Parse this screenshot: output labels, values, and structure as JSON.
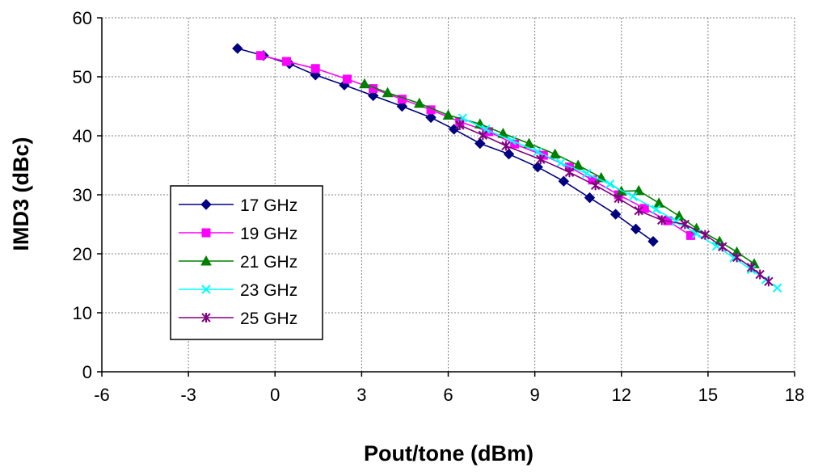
{
  "chart_data": {
    "type": "line",
    "xlabel": "Pout/tone (dBm)",
    "ylabel": "IMD3 (dBc)",
    "xlim": [
      -6,
      18
    ],
    "ylim": [
      0,
      60
    ],
    "xticks": [
      -6,
      -3,
      0,
      3,
      6,
      9,
      12,
      15,
      18
    ],
    "yticks": [
      0,
      10,
      20,
      30,
      40,
      50,
      60
    ],
    "grid": true,
    "legend_position": "lower-left",
    "series": [
      {
        "name": "17 GHz",
        "color": "#000080",
        "marker": "diamond",
        "x": [
          -1.3,
          -0.4,
          0.5,
          1.4,
          2.4,
          3.4,
          4.4,
          5.4,
          6.2,
          7.1,
          8.1,
          9.1,
          10.0,
          10.9,
          11.8,
          12.5,
          13.1
        ],
        "y": [
          54.8,
          53.6,
          52.2,
          50.3,
          48.6,
          46.8,
          45.0,
          43.1,
          41.1,
          38.7,
          36.9,
          34.7,
          32.3,
          29.5,
          26.7,
          24.2,
          22.1
        ]
      },
      {
        "name": "19 GHz",
        "color": "#FF00FF",
        "marker": "square",
        "x": [
          -0.5,
          0.4,
          1.4,
          2.5,
          3.4,
          4.4,
          5.4,
          6.4,
          7.4,
          8.3,
          9.3,
          10.2,
          11.0,
          11.9,
          12.8,
          13.6,
          14.4
        ],
        "y": [
          53.6,
          52.6,
          51.4,
          49.6,
          48.0,
          46.2,
          44.4,
          42.4,
          40.7,
          38.6,
          36.7,
          34.7,
          32.5,
          30.0,
          27.7,
          25.6,
          23.1
        ]
      },
      {
        "name": "21 GHz",
        "color": "#008000",
        "marker": "triangle",
        "x": [
          3.1,
          3.9,
          5.0,
          6.0,
          7.1,
          7.9,
          8.8,
          9.7,
          10.5,
          11.3,
          12.0,
          12.6,
          13.3,
          14.0,
          14.6,
          15.4,
          16.0,
          16.6
        ],
        "y": [
          48.8,
          47.3,
          45.5,
          43.5,
          42.0,
          40.4,
          38.7,
          36.9,
          35.0,
          32.9,
          30.6,
          30.7,
          28.6,
          26.4,
          24.3,
          22.1,
          20.3,
          18.3
        ]
      },
      {
        "name": "23 GHz",
        "color": "#00FFFF",
        "marker": "x",
        "x": [
          6.5,
          7.3,
          8.2,
          9.1,
          9.9,
          10.8,
          11.6,
          12.4,
          13.2,
          13.9,
          14.6,
          15.3,
          15.9,
          16.5,
          17.0,
          17.4
        ],
        "y": [
          43.0,
          41.1,
          39.2,
          37.3,
          35.4,
          33.6,
          31.8,
          29.7,
          27.5,
          25.5,
          23.4,
          21.3,
          19.3,
          17.3,
          15.6,
          14.2
        ]
      },
      {
        "name": "25 GHz",
        "color": "#800080",
        "marker": "asterisk",
        "x": [
          6.4,
          7.2,
          8.0,
          9.2,
          10.2,
          11.1,
          11.9,
          12.6,
          13.4,
          14.2,
          14.9,
          15.5,
          16.0,
          16.5,
          16.8,
          17.1
        ],
        "y": [
          41.8,
          40.1,
          38.3,
          36.0,
          33.8,
          31.6,
          29.4,
          27.3,
          25.7,
          25.0,
          23.2,
          21.2,
          19.4,
          17.7,
          16.5,
          15.3
        ]
      }
    ]
  }
}
